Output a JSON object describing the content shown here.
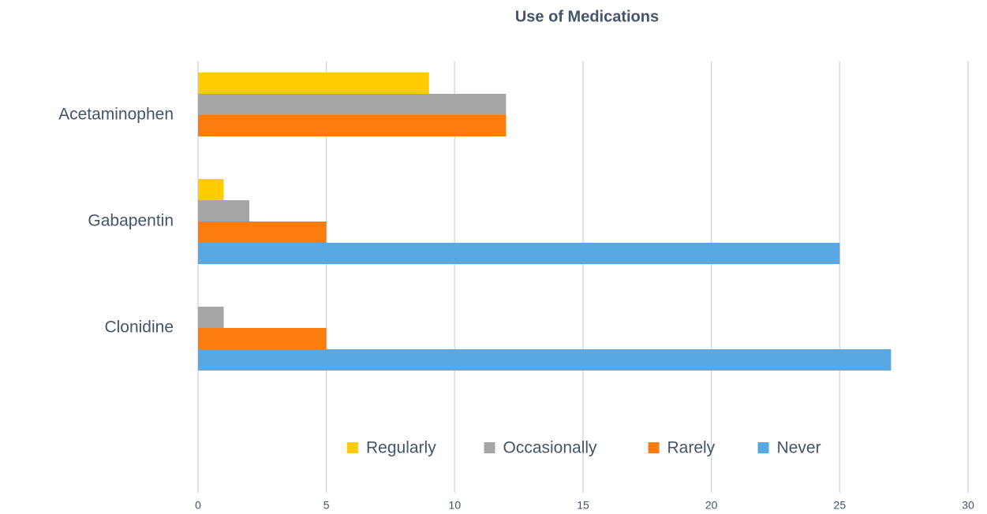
{
  "chart_data": {
    "type": "hbar",
    "title": "Use of Medications",
    "categories": [
      "Acetaminophen",
      "Gabapentin",
      "Clonidine"
    ],
    "series": [
      {
        "name": "Regularly",
        "color": "#ffcc00",
        "values": [
          9,
          1,
          0
        ]
      },
      {
        "name": "Occasionally",
        "color": "#a6a6a6",
        "values": [
          12,
          2,
          1
        ]
      },
      {
        "name": "Rarely",
        "color": "#fb7d10",
        "values": [
          12,
          5,
          5
        ]
      },
      {
        "name": "Never",
        "color": "#5aa8e2",
        "values": [
          0,
          25,
          27
        ]
      }
    ],
    "xlim": [
      0,
      30
    ],
    "xticks": [
      0,
      5,
      10,
      15,
      20,
      25,
      30
    ],
    "grid": true,
    "legend": "bottom"
  }
}
